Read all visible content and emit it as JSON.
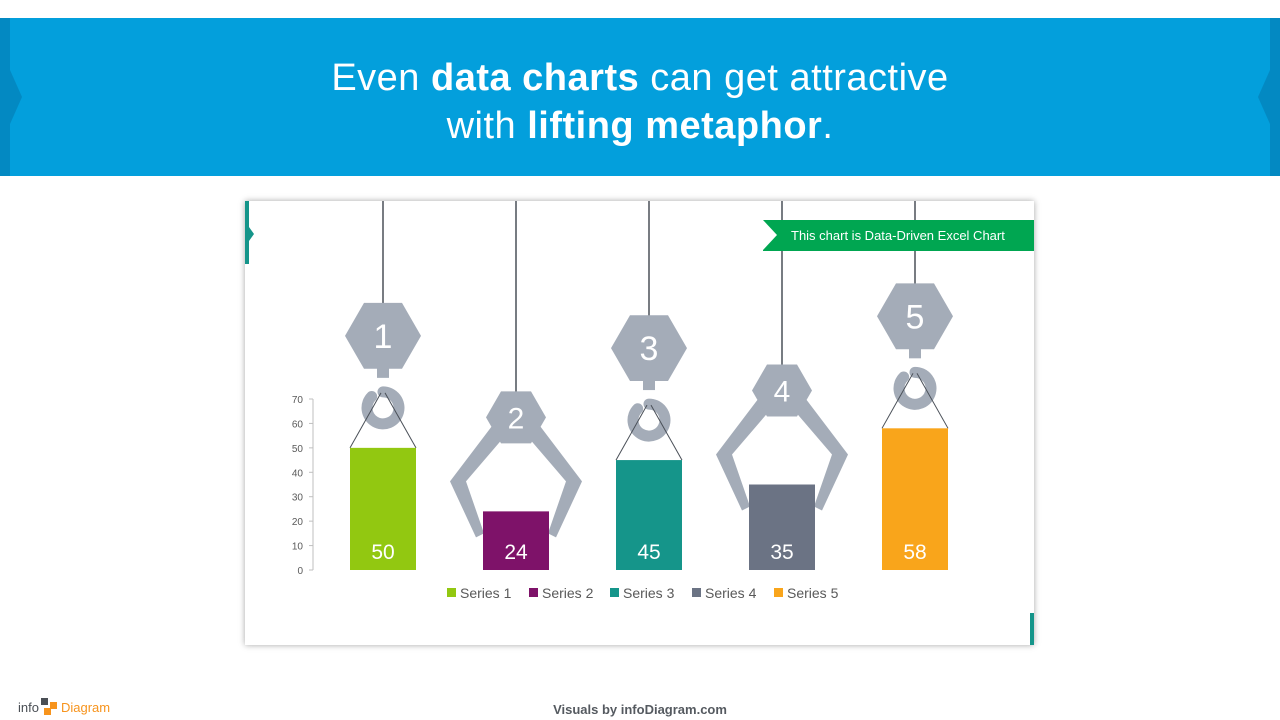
{
  "headline": {
    "line1_pre": "Even ",
    "line1_bold": "data charts",
    "line1_post": " can get attractive",
    "line2_pre": "with ",
    "line2_bold": "lifting metaphor",
    "line2_post": "."
  },
  "ribbon": {
    "text": "This chart is Data-Driven Excel Chart"
  },
  "footer": {
    "credit": "Visuals by infoDiagram.com"
  },
  "logo": {
    "part1": "info",
    "part2": "Diagram"
  },
  "colors": {
    "banner": "#039fdc",
    "icon_gray": "#a4acb8",
    "ribbon": "#00a651",
    "accent_teal": "#15958a"
  },
  "chart_data": {
    "type": "bar",
    "categories": [
      "1",
      "2",
      "3",
      "4",
      "5"
    ],
    "series": [
      {
        "name": "Series 1",
        "value": 50,
        "color": "#92c811",
        "lifter": "hook"
      },
      {
        "name": "Series 2",
        "value": 24,
        "color": "#7e1269",
        "lifter": "claw"
      },
      {
        "name": "Series 3",
        "value": 45,
        "color": "#15958a",
        "lifter": "hook"
      },
      {
        "name": "Series 4",
        "value": 35,
        "color": "#6b7384",
        "lifter": "claw"
      },
      {
        "name": "Series 5",
        "value": 58,
        "color": "#f9a51b",
        "lifter": "hook"
      }
    ],
    "y_ticks": [
      0,
      10,
      20,
      30,
      40,
      50,
      60,
      70
    ],
    "ylim": [
      0,
      70
    ],
    "title": "",
    "xlabel": "",
    "ylabel": "",
    "legend": "bottom",
    "grid": false
  }
}
